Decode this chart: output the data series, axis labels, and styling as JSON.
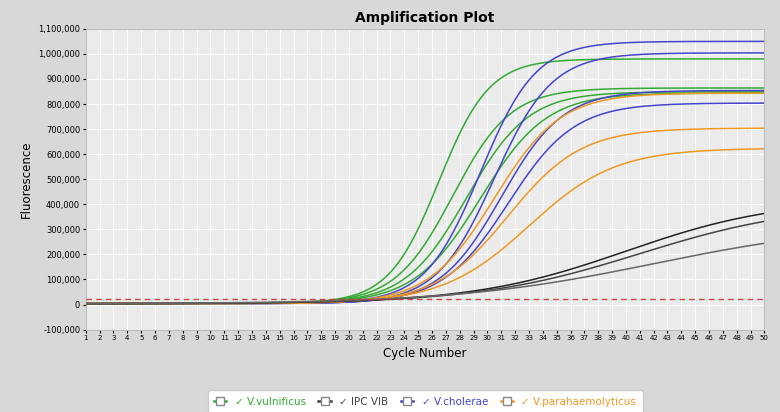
{
  "title": "Amplification Plot",
  "xlabel": "Cycle Number",
  "ylabel": "Fluorescence",
  "xlim": [
    1,
    50
  ],
  "ylim": [
    -100000,
    1100000
  ],
  "yticks": [
    -100000,
    0,
    100000,
    200000,
    300000,
    400000,
    500000,
    600000,
    700000,
    800000,
    900000,
    1000000,
    1100000
  ],
  "ytick_labels": [
    "-100,000",
    "0",
    "100,000",
    "200,000",
    "300,000",
    "400,000",
    "500,000",
    "600,000",
    "700,000",
    "800,000",
    "900,000",
    "1,000,000",
    "1,100,000"
  ],
  "xticks": [
    1,
    2,
    3,
    4,
    5,
    6,
    7,
    8,
    9,
    10,
    11,
    12,
    13,
    14,
    15,
    16,
    17,
    18,
    19,
    20,
    21,
    22,
    23,
    24,
    25,
    26,
    27,
    28,
    29,
    30,
    31,
    32,
    33,
    34,
    35,
    36,
    37,
    38,
    39,
    40,
    41,
    42,
    43,
    44,
    45,
    46,
    47,
    48,
    49,
    50
  ],
  "plot_bg": "#ebebeb",
  "fig_bg": "#d8d8d8",
  "grid_color": "#ffffff",
  "colors": {
    "green": "#33aa33",
    "blue": "#4444cc",
    "orange": "#ee9922",
    "black1": "#222222",
    "black2": "#444444",
    "black3": "#666666",
    "threshold": "#cc3333"
  },
  "legend": [
    {
      "label": "V.vulnificus",
      "color": "#33aa33"
    },
    {
      "label": "IPC VIB",
      "color": "#444444"
    },
    {
      "label": "V.cholerae",
      "color": "#4444cc"
    },
    {
      "label": "V.parahaemolyticus",
      "color": "#ee9922"
    }
  ],
  "threshold_y": 22000,
  "sigmoid_params": {
    "green_curves": [
      {
        "L": 975000,
        "k": 0.55,
        "x0": 26.5,
        "baseline": 5000
      },
      {
        "L": 860000,
        "k": 0.48,
        "x0": 27.5,
        "baseline": 4000
      },
      {
        "L": 845000,
        "k": 0.45,
        "x0": 28.5,
        "baseline": 4000
      },
      {
        "L": 840000,
        "k": 0.42,
        "x0": 29.5,
        "baseline": 4000
      }
    ],
    "blue_curves": [
      {
        "L": 1045000,
        "k": 0.5,
        "x0": 29.5,
        "baseline": 5000
      },
      {
        "L": 1000000,
        "k": 0.48,
        "x0": 30.5,
        "baseline": 4000
      },
      {
        "L": 850000,
        "k": 0.45,
        "x0": 31.0,
        "baseline": 4000
      },
      {
        "L": 800000,
        "k": 0.42,
        "x0": 31.5,
        "baseline": 4000
      }
    ],
    "orange_curves": [
      {
        "L": 840000,
        "k": 0.42,
        "x0": 30.5,
        "baseline": 4000
      },
      {
        "L": 700000,
        "k": 0.38,
        "x0": 31.5,
        "baseline": 4000
      },
      {
        "L": 620000,
        "k": 0.32,
        "x0": 33.0,
        "baseline": 4000
      }
    ],
    "black_curves": [
      {
        "L": 420000,
        "k": 0.18,
        "x0": 40.0,
        "baseline": 3000
      },
      {
        "L": 400000,
        "k": 0.17,
        "x0": 41.0,
        "baseline": 3000
      },
      {
        "L": 320000,
        "k": 0.14,
        "x0": 42.0,
        "baseline": 3000
      }
    ]
  }
}
